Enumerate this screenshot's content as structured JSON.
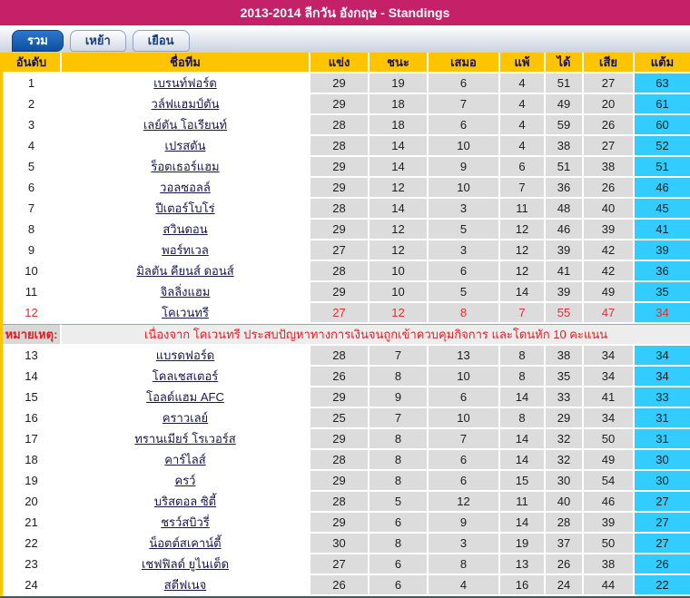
{
  "banner": {
    "title": "2013-2014 ลีกวัน อังกฤษ - Standings"
  },
  "tabs": [
    {
      "label": "รวม",
      "active": true
    },
    {
      "label": "เหย้า",
      "active": false
    },
    {
      "label": "เยือน",
      "active": false
    }
  ],
  "table": {
    "columns": [
      "อันดับ",
      "ชื่อทีม",
      "แข่ง",
      "ชนะ",
      "เสมอ",
      "แพ้",
      "ได้",
      "เสีย",
      "แต้ม"
    ],
    "rows": [
      {
        "rank": 1,
        "team": "เบรนท์ฟอร์ด",
        "played": 29,
        "won": 19,
        "drawn": 6,
        "lost": 4,
        "gf": 51,
        "ga": 27,
        "pts": 63
      },
      {
        "rank": 2,
        "team": "วล์ฟแฮมป์ตัน",
        "played": 29,
        "won": 18,
        "drawn": 7,
        "lost": 4,
        "gf": 49,
        "ga": 20,
        "pts": 61
      },
      {
        "rank": 3,
        "team": "เลย์ตัน โอเรียนท์",
        "played": 28,
        "won": 18,
        "drawn": 6,
        "lost": 4,
        "gf": 59,
        "ga": 26,
        "pts": 60
      },
      {
        "rank": 4,
        "team": "เปรสตัน",
        "played": 28,
        "won": 14,
        "drawn": 10,
        "lost": 4,
        "gf": 38,
        "ga": 27,
        "pts": 52
      },
      {
        "rank": 5,
        "team": "ร็อตเธอร์แฮม",
        "played": 29,
        "won": 14,
        "drawn": 9,
        "lost": 6,
        "gf": 51,
        "ga": 38,
        "pts": 51
      },
      {
        "rank": 6,
        "team": "วอลซอลล์",
        "played": 29,
        "won": 12,
        "drawn": 10,
        "lost": 7,
        "gf": 36,
        "ga": 26,
        "pts": 46
      },
      {
        "rank": 7,
        "team": "ปีเตอร์โบโร่",
        "played": 28,
        "won": 14,
        "drawn": 3,
        "lost": 11,
        "gf": 48,
        "ga": 40,
        "pts": 45
      },
      {
        "rank": 8,
        "team": "สวินดอน",
        "played": 29,
        "won": 12,
        "drawn": 5,
        "lost": 12,
        "gf": 46,
        "ga": 39,
        "pts": 41
      },
      {
        "rank": 9,
        "team": "พอร์ทเวล",
        "played": 27,
        "won": 12,
        "drawn": 3,
        "lost": 12,
        "gf": 39,
        "ga": 42,
        "pts": 39
      },
      {
        "rank": 10,
        "team": "มิลตัน คียนส์ ดอนส์",
        "played": 28,
        "won": 10,
        "drawn": 6,
        "lost": 12,
        "gf": 41,
        "ga": 42,
        "pts": 36
      },
      {
        "rank": 11,
        "team": "จิลลิ่งแฮม",
        "played": 29,
        "won": 10,
        "drawn": 5,
        "lost": 14,
        "gf": 39,
        "ga": 49,
        "pts": 35
      },
      {
        "rank": 12,
        "team": "โคเวนทรี",
        "played": 27,
        "won": 12,
        "drawn": 8,
        "lost": 7,
        "gf": 55,
        "ga": 47,
        "pts": 34,
        "penalized": true
      },
      {
        "rank": 13,
        "team": "แบรดฟอร์ด",
        "played": 28,
        "won": 7,
        "drawn": 13,
        "lost": 8,
        "gf": 38,
        "ga": 34,
        "pts": 34
      },
      {
        "rank": 14,
        "team": "โคลเชสเตอร์",
        "played": 26,
        "won": 8,
        "drawn": 10,
        "lost": 8,
        "gf": 35,
        "ga": 34,
        "pts": 34
      },
      {
        "rank": 15,
        "team": "โอลด์แฮม AFC",
        "played": 29,
        "won": 9,
        "drawn": 6,
        "lost": 14,
        "gf": 33,
        "ga": 41,
        "pts": 33
      },
      {
        "rank": 16,
        "team": "คราวเลย์",
        "played": 25,
        "won": 7,
        "drawn": 10,
        "lost": 8,
        "gf": 29,
        "ga": 34,
        "pts": 31
      },
      {
        "rank": 17,
        "team": "ทรานเมียร์ โรเวอร์ส",
        "played": 29,
        "won": 8,
        "drawn": 7,
        "lost": 14,
        "gf": 32,
        "ga": 50,
        "pts": 31
      },
      {
        "rank": 18,
        "team": "คาร์ไลส์",
        "played": 28,
        "won": 8,
        "drawn": 6,
        "lost": 14,
        "gf": 32,
        "ga": 49,
        "pts": 30
      },
      {
        "rank": 19,
        "team": "ครว์",
        "played": 29,
        "won": 8,
        "drawn": 6,
        "lost": 15,
        "gf": 30,
        "ga": 54,
        "pts": 30
      },
      {
        "rank": 20,
        "team": "บริสตอล ซิตี้",
        "played": 28,
        "won": 5,
        "drawn": 12,
        "lost": 11,
        "gf": 40,
        "ga": 46,
        "pts": 27
      },
      {
        "rank": 21,
        "team": "ชรว์สบิวรี่",
        "played": 29,
        "won": 6,
        "drawn": 9,
        "lost": 14,
        "gf": 28,
        "ga": 39,
        "pts": 27
      },
      {
        "rank": 22,
        "team": "น็อตต์สเคาน์ตี้",
        "played": 30,
        "won": 8,
        "drawn": 3,
        "lost": 19,
        "gf": 37,
        "ga": 50,
        "pts": 27
      },
      {
        "rank": 23,
        "team": "เชฟฟิลด์ ยูไนเต็ด",
        "played": 27,
        "won": 6,
        "drawn": 8,
        "lost": 13,
        "gf": 26,
        "ga": 38,
        "pts": 26
      },
      {
        "rank": 24,
        "team": "สตีฟเนจ",
        "played": 26,
        "won": 6,
        "drawn": 4,
        "lost": 16,
        "gf": 24,
        "ga": 44,
        "pts": 22
      }
    ],
    "note": {
      "label": "หมายเหตุ:",
      "text": "เนื่องจาก โคเวนทรี ประสบปัญหาทางการเงินจนถูกเข้าควบคุมกิจการ และโดนหัก 10 คะแนน",
      "after_rank": 12
    }
  },
  "colors": {
    "banner": "#C42169",
    "header_bg": "#FFC400",
    "points_bg": "#33CCFF",
    "stat_cell_bg": "#DCDCDC",
    "active_tab": "#0d4fa0",
    "penalty_red": "#E03131",
    "note_red": "#DF1F1F"
  }
}
